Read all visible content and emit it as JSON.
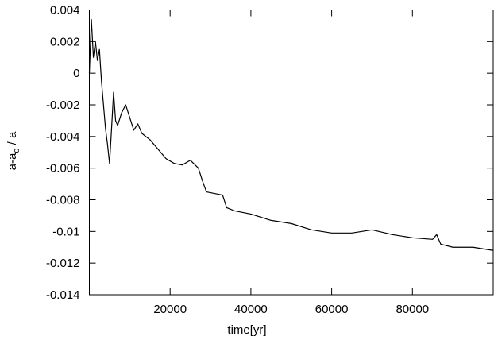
{
  "chart_data": {
    "type": "line",
    "x_label": "time[yr]",
    "y_label": {
      "main": "a-a",
      "sub": "o",
      "rest": " / a"
    },
    "xlim": [
      0,
      100000
    ],
    "xticks": [
      20000,
      40000,
      60000,
      80000
    ],
    "ylim": [
      -0.014,
      0.004
    ],
    "yticks": [
      0.004,
      0.002,
      0,
      -0.002,
      -0.004,
      -0.006,
      -0.008,
      -0.01,
      -0.012,
      -0.014
    ],
    "grid": false,
    "color": "#000000",
    "x": [
      0,
      500,
      1000,
      1500,
      2000,
      2500,
      3000,
      3500,
      4000,
      4500,
      5000,
      5500,
      6000,
      6500,
      7000,
      8000,
      9000,
      10000,
      11000,
      12000,
      13000,
      15000,
      17000,
      19000,
      21000,
      23000,
      25000,
      27000,
      28000,
      29000,
      31000,
      33000,
      34000,
      36000,
      40000,
      45000,
      50000,
      55000,
      60000,
      65000,
      70000,
      75000,
      80000,
      85000,
      86000,
      87000,
      90000,
      95000,
      100000
    ],
    "values": [
      0,
      0.0034,
      0.001,
      0.002,
      0.0008,
      0.0015,
      -0.0005,
      -0.002,
      -0.0035,
      -0.0045,
      -0.0057,
      -0.0035,
      -0.0012,
      -0.003,
      -0.0033,
      -0.0025,
      -0.002,
      -0.0028,
      -0.0036,
      -0.0032,
      -0.0038,
      -0.0042,
      -0.0048,
      -0.0054,
      -0.0057,
      -0.0058,
      -0.0055,
      -0.006,
      -0.0068,
      -0.0075,
      -0.0076,
      -0.0077,
      -0.0085,
      -0.0087,
      -0.0089,
      -0.0093,
      -0.0095,
      -0.0099,
      -0.0101,
      -0.0101,
      -0.0099,
      -0.0102,
      -0.0104,
      -0.0105,
      -0.0102,
      -0.0108,
      -0.011,
      -0.011,
      -0.0112
    ]
  }
}
